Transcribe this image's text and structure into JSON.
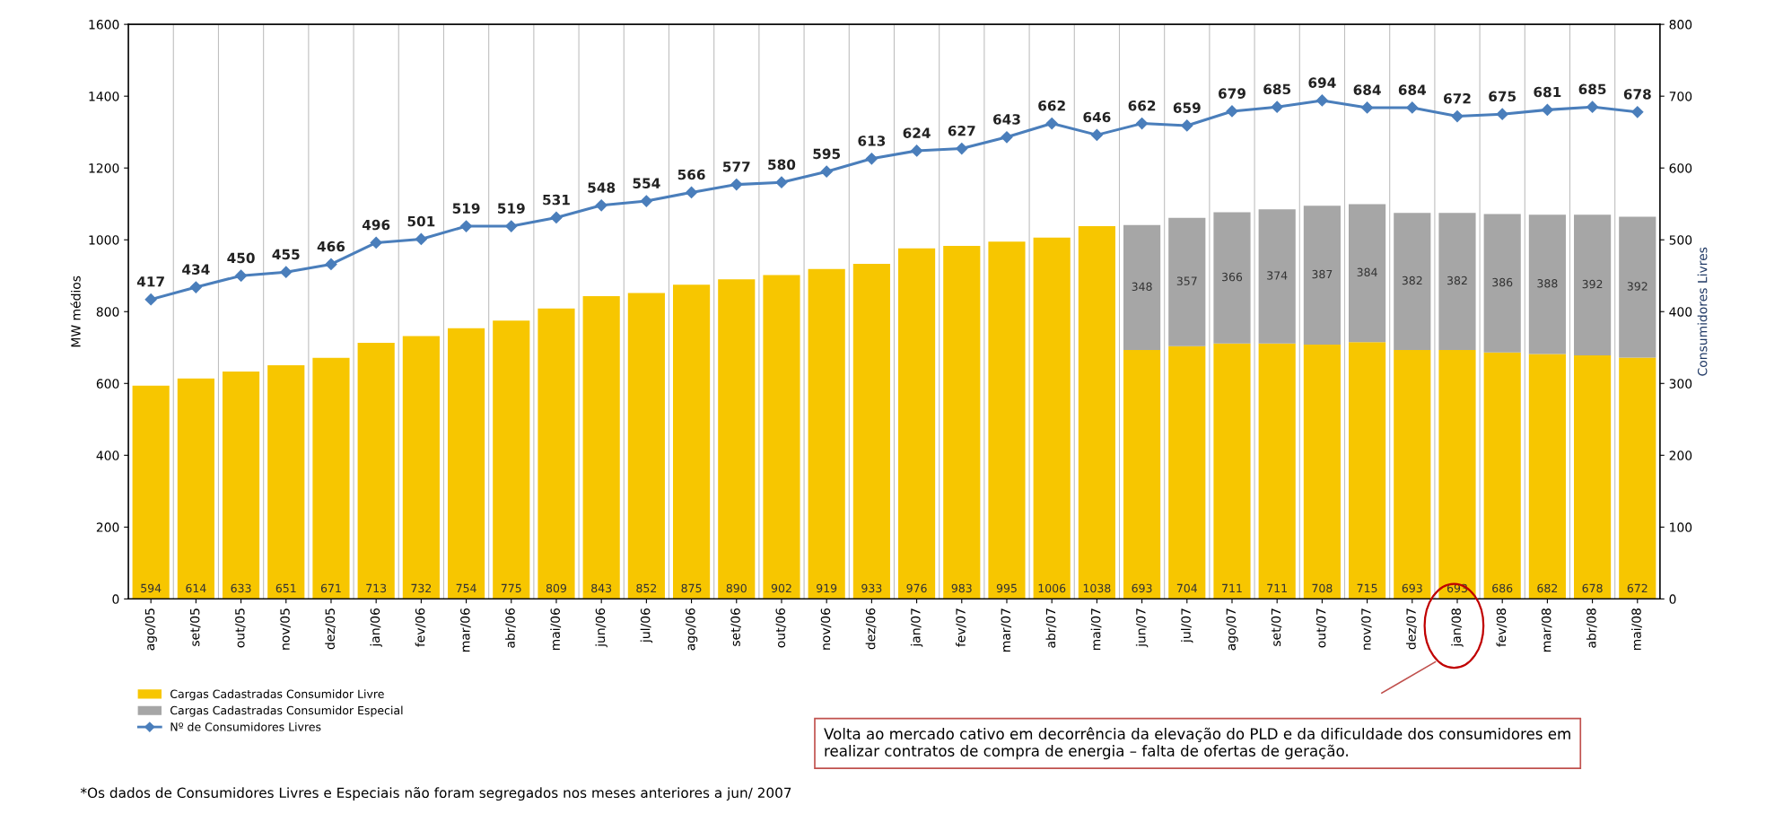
{
  "chart_data": {
    "type": "bar",
    "stacked": true,
    "ylabel": "MW médios",
    "y2label": "Consumidores Livres",
    "categories": [
      "ago/05",
      "set/05",
      "out/05",
      "nov/05",
      "dez/05",
      "jan/06",
      "fev/06",
      "mar/06",
      "abr/06",
      "mai/06",
      "jun/06",
      "jul/06",
      "ago/06",
      "set/06",
      "out/06",
      "nov/06",
      "dez/06",
      "jan/07",
      "fev/07",
      "mar/07",
      "abr/07",
      "mai/07",
      "jun/07",
      "jul/07",
      "ago/07",
      "set/07",
      "out/07",
      "nov/07",
      "dez/07",
      "jan/08",
      "fev/08",
      "mar/08",
      "abr/08",
      "mai/08"
    ],
    "series": [
      {
        "name": "Cargas Cadastradas Consumidor Livre",
        "color": "#f7c600",
        "values": [
          594,
          614,
          633,
          651,
          671,
          713,
          732,
          754,
          775,
          809,
          843,
          852,
          875,
          890,
          902,
          919,
          933,
          976,
          983,
          995,
          1006,
          1038,
          693,
          704,
          711,
          711,
          708,
          715,
          693,
          693,
          686,
          682,
          678,
          672
        ]
      },
      {
        "name": "Cargas Cadastradas Consumidor Especial",
        "color": "#a6a6a6",
        "values": [
          null,
          null,
          null,
          null,
          null,
          null,
          null,
          null,
          null,
          null,
          null,
          null,
          null,
          null,
          null,
          null,
          null,
          null,
          null,
          null,
          null,
          null,
          348,
          357,
          366,
          374,
          387,
          384,
          382,
          382,
          386,
          388,
          392,
          392
        ]
      },
      {
        "name": "Nº de Consumidores Livres",
        "type": "line",
        "axis": "y2",
        "color": "#4a7ebb",
        "marker": "diamond",
        "values": [
          417,
          434,
          450,
          455,
          466,
          496,
          501,
          519,
          519,
          531,
          548,
          554,
          566,
          577,
          580,
          595,
          613,
          624,
          627,
          643,
          662,
          646,
          662,
          659,
          679,
          685,
          694,
          684,
          684,
          672,
          675,
          681,
          685,
          678
        ]
      }
    ],
    "ylim": [
      0,
      1600
    ],
    "yticks": [
      0,
      200,
      400,
      600,
      800,
      1000,
      1200,
      1400,
      1600
    ],
    "y2lim": [
      0,
      800
    ],
    "y2ticks": [
      0,
      100,
      200,
      300,
      400,
      500,
      600,
      700,
      800
    ],
    "data_labels": true,
    "grid": "x",
    "legend": "bottom left",
    "annotations": [
      "Volta ao mercado cativo em decorrência da elevação do PLD e da dificuldade dos consumidores em realizar contratos de compra de energia – falta de ofertas de geração.",
      "*Os dados de Consumidores Livres e Especiais não foram segregados nos meses anteriores a jun/ 2007"
    ]
  }
}
